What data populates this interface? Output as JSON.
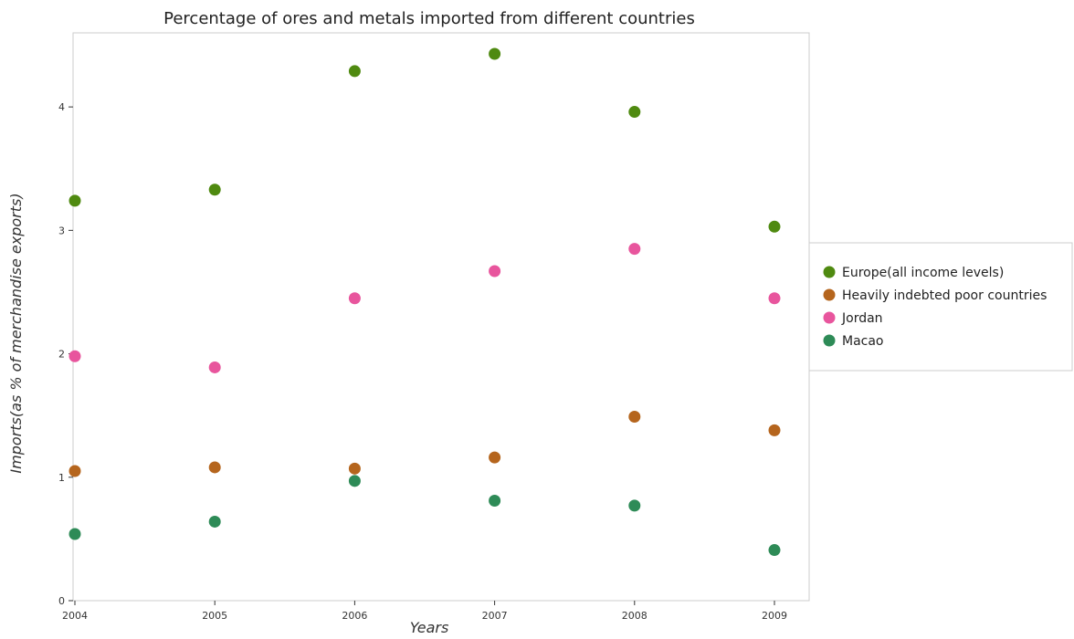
{
  "chart_data": {
    "type": "scatter",
    "title": "Percentage of ores and metals imported from different countries",
    "xlabel": "Years",
    "ylabel": "Imports(as % of merchandise exports)",
    "categories": [
      "2004",
      "2005",
      "2006",
      "2007",
      "2008",
      "2009"
    ],
    "ylim": [
      0,
      4.6
    ],
    "yticks": [
      "0",
      "1",
      "2",
      "3",
      "4"
    ],
    "grid": false,
    "legend_position": "right",
    "series": [
      {
        "name": "Europe(all income levels)",
        "color": "#4f8a10",
        "values": [
          3.24,
          3.33,
          4.29,
          4.43,
          3.96,
          3.03
        ]
      },
      {
        "name": "Heavily indebted poor countries",
        "color": "#b5651d",
        "values": [
          1.05,
          1.08,
          1.07,
          1.16,
          1.49,
          1.38
        ]
      },
      {
        "name": "Jordan",
        "color": "#e8559d",
        "values": [
          1.98,
          1.89,
          2.45,
          2.67,
          2.85,
          2.45
        ]
      },
      {
        "name": "Macao",
        "color": "#2e8b57",
        "values": [
          0.54,
          0.64,
          0.97,
          0.81,
          0.77,
          0.41
        ]
      }
    ]
  }
}
